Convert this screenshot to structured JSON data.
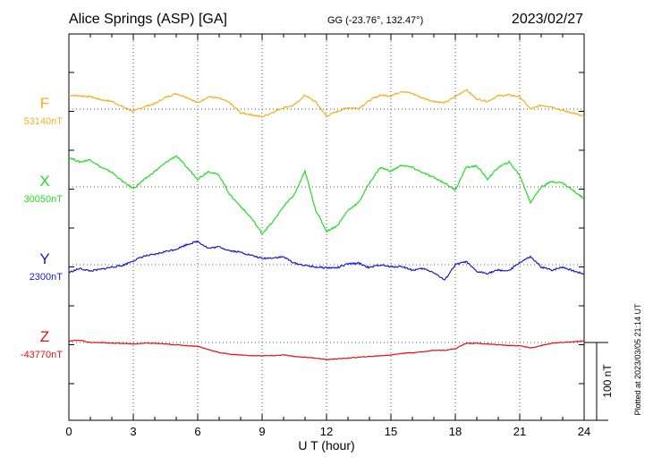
{
  "header": {
    "station": "Alice Springs (ASP)  [GA]",
    "coords": "GG (-23.76°, 132.47°)",
    "date": "2023/02/27"
  },
  "footer": {
    "plotted": "Plotted at 2023/03/05 21:14 UT",
    "scale_label": "100 nT"
  },
  "colors": {
    "F": "#f0b020",
    "X": "#22dd22",
    "Y": "#1a1acc",
    "Z": "#e01010"
  },
  "chart_data": {
    "type": "line",
    "xlabel": "U T (hour)",
    "xlim": [
      0,
      24
    ],
    "x_ticks": [
      "0",
      "3",
      "6",
      "9",
      "12",
      "15",
      "18",
      "21",
      "24"
    ],
    "x": [
      0,
      0.5,
      1,
      1.5,
      2,
      2.5,
      3,
      3.5,
      4,
      4.5,
      5,
      5.5,
      6,
      6.5,
      7,
      7.5,
      8,
      8.5,
      9,
      9.5,
      10,
      10.5,
      11,
      11.5,
      12,
      12.5,
      13,
      13.5,
      14,
      14.5,
      15,
      15.5,
      16,
      16.5,
      17,
      17.5,
      18,
      18.5,
      19,
      19.5,
      20,
      20.5,
      21,
      21.5,
      22,
      22.5,
      23,
      23.5,
      24
    ],
    "series": [
      {
        "name": "F",
        "baseline_label": "53140nT",
        "values": [
          53158,
          53157,
          53156,
          53152,
          53150,
          53143,
          53137,
          53143,
          53147,
          53155,
          53160,
          53155,
          53148,
          53156,
          53154,
          53148,
          53135,
          53133,
          53130,
          53136,
          53142,
          53145,
          53158,
          53149,
          53131,
          53137,
          53142,
          53141,
          53151,
          53158,
          53157,
          53163,
          53160,
          53154,
          53150,
          53148,
          53156,
          53165,
          53153,
          53150,
          53157,
          53158,
          53156,
          53140,
          53145,
          53143,
          53138,
          53135,
          53130
        ]
      },
      {
        "name": "X",
        "baseline_label": "30050nT",
        "values": [
          30088,
          30082,
          30085,
          30075,
          30069,
          30057,
          30048,
          30059,
          30070,
          30081,
          30090,
          30075,
          30060,
          30070,
          30065,
          30040,
          30025,
          30010,
          29990,
          30005,
          30025,
          30040,
          30070,
          30020,
          29993,
          30000,
          30020,
          30030,
          30055,
          30075,
          30070,
          30078,
          30075,
          30068,
          30062,
          30055,
          30046,
          30075,
          30077,
          30060,
          30075,
          30082,
          30065,
          30030,
          30050,
          30057,
          30055,
          30045,
          30035
        ]
      },
      {
        "name": "Y",
        "baseline_label": "2300nT",
        "values": [
          2290,
          2295,
          2292,
          2294,
          2297,
          2299,
          2305,
          2311,
          2313,
          2317,
          2320,
          2326,
          2330,
          2321,
          2323,
          2318,
          2316,
          2312,
          2308,
          2309,
          2310,
          2302,
          2299,
          2297,
          2296,
          2296,
          2301,
          2302,
          2296,
          2300,
          2297,
          2298,
          2293,
          2295,
          2290,
          2280,
          2300,
          2304,
          2291,
          2289,
          2293,
          2292,
          2303,
          2310,
          2297,
          2293,
          2297,
          2292,
          2288
        ]
      },
      {
        "name": "Z",
        "baseline_label": "-43770nT",
        "values": [
          -43768,
          -43767,
          -43770,
          -43770,
          -43771,
          -43771,
          -43772,
          -43771,
          -43771,
          -43772,
          -43773,
          -43774,
          -43775,
          -43779,
          -43783,
          -43785,
          -43786,
          -43787,
          -43787,
          -43787,
          -43786,
          -43788,
          -43789,
          -43790,
          -43792,
          -43791,
          -43790,
          -43789,
          -43788,
          -43787,
          -43786,
          -43784,
          -43783,
          -43782,
          -43780,
          -43780,
          -43778,
          -43771,
          -43771,
          -43772,
          -43773,
          -43774,
          -43774,
          -43777,
          -43774,
          -43771,
          -43770,
          -43769,
          -43768
        ]
      }
    ]
  }
}
